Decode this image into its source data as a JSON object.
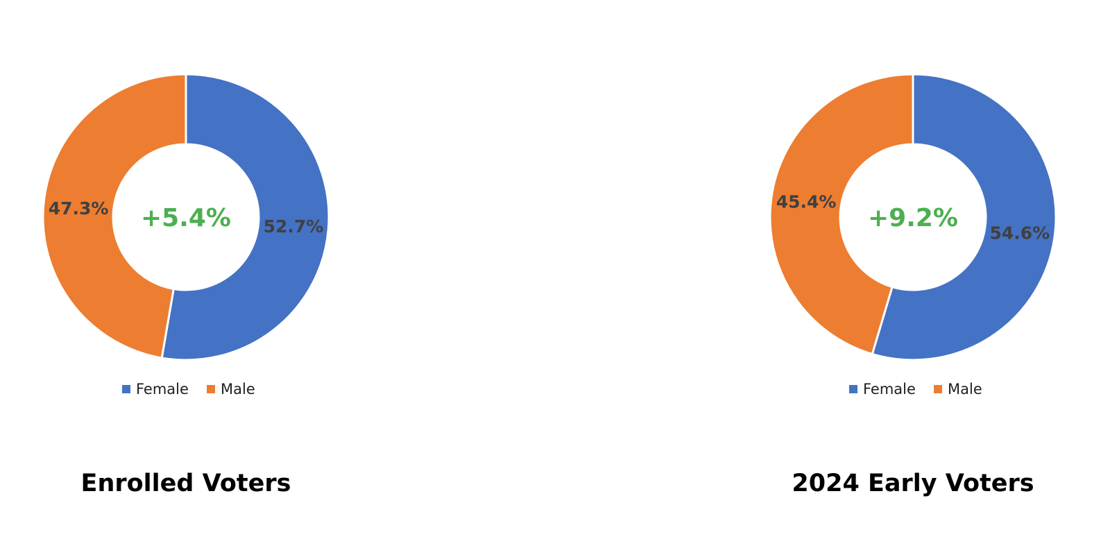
{
  "colors": {
    "female": "#4472C4",
    "male": "#ED7D31",
    "center_text": "#4CAF50"
  },
  "chart_data": [
    {
      "type": "pie",
      "title": "Enrolled Voters",
      "center_text": "+5.4%",
      "categories": [
        "Female",
        "Male"
      ],
      "values": [
        52.7,
        47.3
      ],
      "value_labels": [
        "52.7%",
        "47.3%"
      ],
      "legend": {
        "position": "bottom",
        "entries": [
          "Female",
          "Male"
        ]
      }
    },
    {
      "type": "pie",
      "title": "2024 Early Voters",
      "center_text": "+9.2%",
      "categories": [
        "Female",
        "Male"
      ],
      "values": [
        54.6,
        45.4
      ],
      "value_labels": [
        "54.6%",
        "45.4%"
      ],
      "legend": {
        "position": "bottom",
        "entries": [
          "Female",
          "Male"
        ]
      }
    }
  ]
}
